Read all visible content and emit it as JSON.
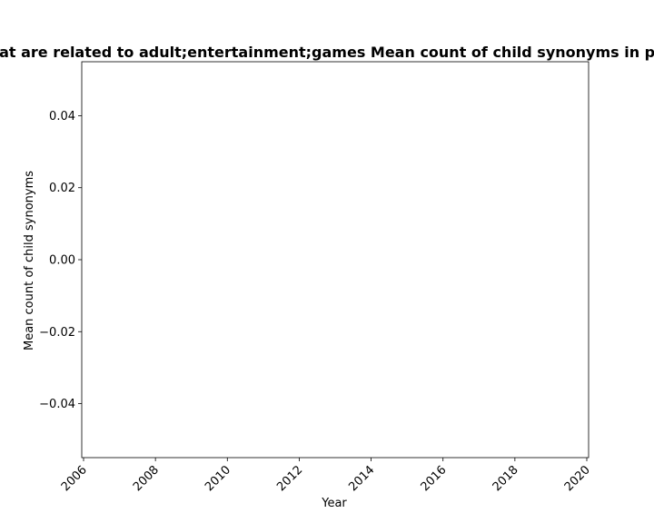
{
  "chart_data": {
    "type": "line",
    "title": "Websites that are related to adult;entertainment;games Mean count of child synonyms in privacy policies",
    "xlabel": "Year",
    "ylabel": "Mean count of child synonyms",
    "x_ticks": [
      "2006",
      "2008",
      "2010",
      "2012",
      "2014",
      "2016",
      "2018",
      "2020"
    ],
    "y_ticks": [
      "0.04",
      "0.02",
      "0.00",
      "−0.02",
      "−0.04"
    ],
    "xlim": [
      2006,
      2020
    ],
    "ylim": [
      -0.055,
      0.055
    ],
    "series": [],
    "grid": false
  }
}
